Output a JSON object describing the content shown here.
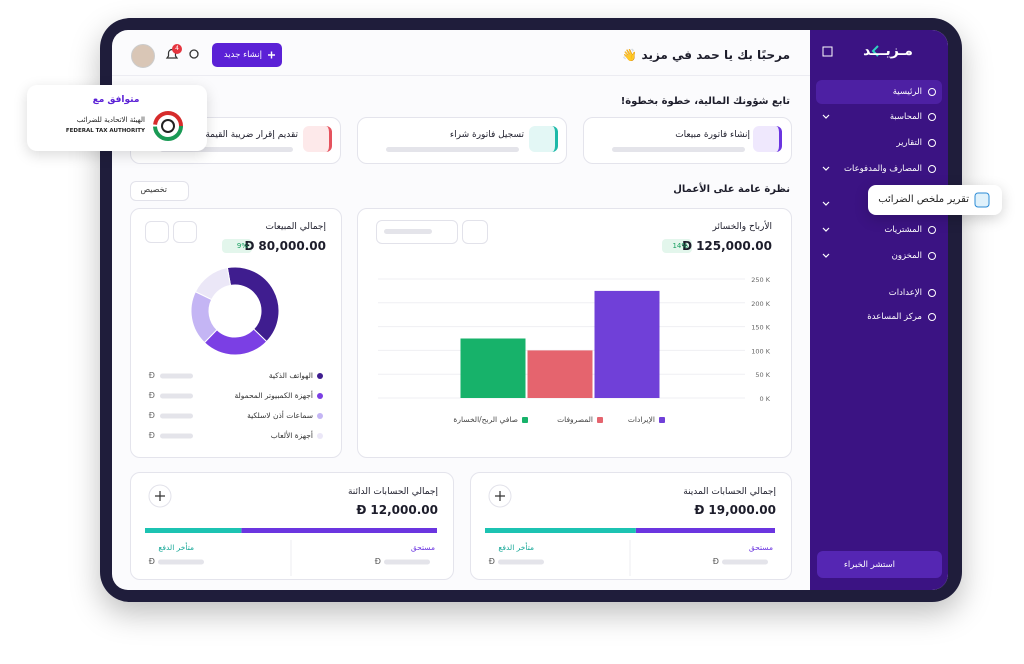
{
  "sidebar": {
    "logo": "مـزيـــد",
    "menu": [
      "الرئيسية",
      "المحاسبة",
      "التقارير",
      "المصارف والمدفوعات",
      "المشتريات",
      "المخزون",
      "الإعدادات",
      "مركز المساعدة"
    ],
    "cta": "استشر الخبراء"
  },
  "popup": "تقرير ملخص الضرائب",
  "badge": {
    "caption": "متوافق مع",
    "name_ar": "الهيئة الاتحادية للضرائب",
    "name_en": "FEDERAL TAX AUTHORITY"
  },
  "header": {
    "greeting": "مرحبًا بك يا حمد في مزيد 👋",
    "new_button": "إنشاء جديد",
    "notifications": 4
  },
  "quick_actions": {
    "title": "تابع شؤونك المالية، خطوة بخطوة!",
    "items": [
      "إنشاء فاتورة مبيعات",
      "تسجيل فاتورة شراء",
      "تقديم إقرار ضريبة القيمة"
    ]
  },
  "overview": {
    "title": "نظرة عامة على الأعمال",
    "customize": "تخصيص"
  },
  "currency": "Đ",
  "chart_data": [
    {
      "type": "bar",
      "title": "الأرباح والخسائر",
      "amount": "125,000.00",
      "change": "14%",
      "categories": [
        "الإيرادات",
        "المصروفات",
        "صافي الربح/الخسارة"
      ],
      "values": [
        225000,
        100000,
        125000
      ],
      "colors": [
        "#7040d8",
        "#e5646e",
        "#17b26a"
      ],
      "ylim": [
        0,
        250000
      ],
      "yticks": [
        {
          "value": 0,
          "label": "0 K"
        },
        {
          "value": 50000,
          "label": "50 K"
        },
        {
          "value": 100000,
          "label": "100 K"
        },
        {
          "value": 150000,
          "label": "150 K"
        },
        {
          "value": 200000,
          "label": "200 K"
        },
        {
          "value": 250000,
          "label": "250 K"
        }
      ],
      "grid": true
    },
    {
      "type": "pie",
      "title": "إجمالي المبيعات",
      "amount": "80,000.00",
      "change": "9%",
      "categories": [
        "الهواتف الذكية",
        "أجهزة الكمبيوتر المحمولة",
        "سماعات أذن لاسلكية",
        "أجهزة الألعاب"
      ],
      "values": [
        40,
        25,
        20,
        15
      ],
      "colors": [
        "#3f1d8f",
        "#7b3fe4",
        "#c4b5f4",
        "#ebe7f7"
      ]
    }
  ],
  "accounts": [
    {
      "title": "إجمالي الحسابات المدينة",
      "amount": "19,000.00",
      "due_label": "مستحق",
      "overdue_label": "متأخر الدفع",
      "due": 48,
      "overdue": 52
    },
    {
      "title": "إجمالي الحسابات الدائنة",
      "amount": "12,000.00",
      "due_label": "مستحق",
      "overdue_label": "متأخر الدفع",
      "due": 67,
      "overdue": 33
    }
  ]
}
